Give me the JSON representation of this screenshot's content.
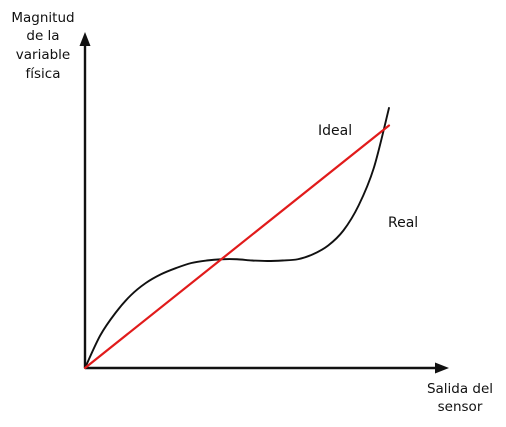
{
  "chart_data": {
    "type": "line",
    "ylabel_lines": [
      "Magnitud",
      "de la",
      "variable",
      "física"
    ],
    "xlabel_lines": [
      "Salida del",
      "sensor"
    ],
    "grid": false,
    "legend": "none",
    "series": [
      {
        "name": "Ideal",
        "color": "#e11b1b",
        "points": [
          [
            0,
            0
          ],
          [
            10,
            9.7
          ]
        ]
      },
      {
        "name": "Real",
        "color": "#111111",
        "points": [
          [
            0,
            0
          ],
          [
            0.5,
            1.3
          ],
          [
            1,
            2.2
          ],
          [
            1.5,
            2.9
          ],
          [
            2,
            3.4
          ],
          [
            2.5,
            3.75
          ],
          [
            3,
            4.0
          ],
          [
            3.5,
            4.2
          ],
          [
            4,
            4.3
          ],
          [
            4.5,
            4.35
          ],
          [
            5,
            4.35
          ],
          [
            5.5,
            4.3
          ],
          [
            6,
            4.28
          ],
          [
            6.5,
            4.3
          ],
          [
            7,
            4.35
          ],
          [
            7.5,
            4.55
          ],
          [
            8,
            4.9
          ],
          [
            8.5,
            5.5
          ],
          [
            9,
            6.5
          ],
          [
            9.5,
            8.0
          ],
          [
            10,
            10.4
          ]
        ]
      }
    ],
    "axis_color": "#111111"
  }
}
